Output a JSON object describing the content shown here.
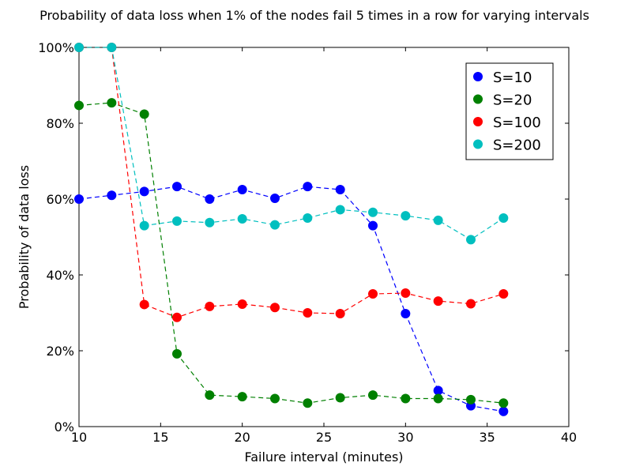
{
  "chart_data": {
    "type": "line",
    "title": "Probability of data loss when 1% of the nodes fail 5 times in a row for varying intervals",
    "xlabel": "Failure interval (minutes)",
    "ylabel": "Probability of data loss",
    "xlim": [
      10,
      40
    ],
    "ylim": [
      0,
      100
    ],
    "xticks": [
      10,
      15,
      20,
      25,
      30,
      35,
      40
    ],
    "yticks": [
      0,
      20,
      40,
      60,
      80,
      100
    ],
    "ytick_labels": [
      "0%",
      "20%",
      "40%",
      "60%",
      "80%",
      "100%"
    ],
    "grid": false,
    "legend_position": "top-right",
    "x": [
      10,
      12,
      14,
      16,
      18,
      20,
      22,
      24,
      26,
      28,
      30,
      32,
      34,
      36
    ],
    "series": [
      {
        "name": "S=10",
        "color": "#0000ff",
        "values": [
          60,
          61,
          62,
          63.3,
          60,
          62.5,
          60.2,
          63.3,
          62.5,
          53,
          29.8,
          9.5,
          5.5,
          4
        ]
      },
      {
        "name": "S=20",
        "color": "#008000",
        "values": [
          84.7,
          85.4,
          82.4,
          19.2,
          8.3,
          7.9,
          7.4,
          6.2,
          7.6,
          8.3,
          7.4,
          7.4,
          7.1,
          6.2
        ]
      },
      {
        "name": "S=100",
        "color": "#ff0000",
        "values": [
          100,
          100,
          32.2,
          28.8,
          31.7,
          32.3,
          31.4,
          30,
          29.8,
          35,
          35.2,
          33.1,
          32.4,
          35
        ]
      },
      {
        "name": "S=200",
        "color": "#00bfbf",
        "values": [
          100,
          100,
          53,
          54.2,
          53.8,
          54.8,
          53.2,
          55,
          57.2,
          56.5,
          55.6,
          54.4,
          49.3,
          55
        ]
      }
    ]
  }
}
